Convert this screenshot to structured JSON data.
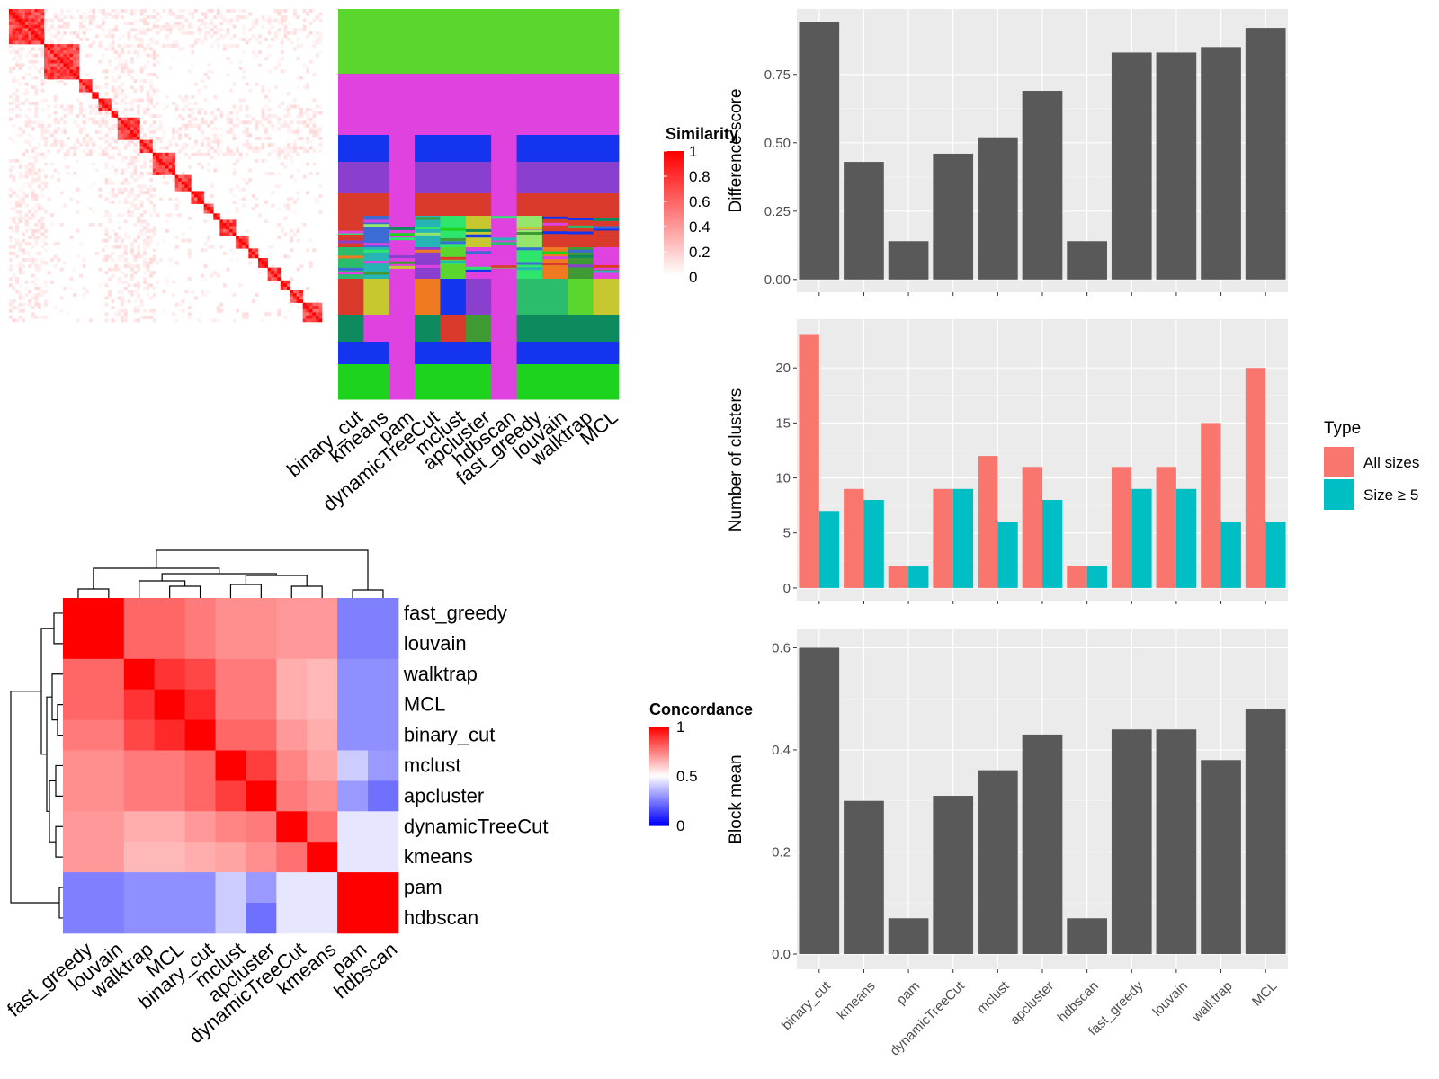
{
  "methods": [
    "binary_cut",
    "kmeans",
    "pam",
    "dynamicTreeCut",
    "mclust",
    "apcluster",
    "hdbscan",
    "fast_greedy",
    "louvain",
    "walktrap",
    "MCL"
  ],
  "similarity_legend": {
    "title": "Similarity",
    "ticks": [
      "1",
      "0.8",
      "0.6",
      "0.4",
      "0.2",
      "0"
    ]
  },
  "concordance_legend": {
    "title": "Concordance",
    "ticks": [
      "1",
      "0.5",
      "0"
    ]
  },
  "concordance_order": [
    "fast_greedy",
    "louvain",
    "walktrap",
    "MCL",
    "binary_cut",
    "mclust",
    "apcluster",
    "dynamicTreeCut",
    "kmeans",
    "pam",
    "hdbscan"
  ],
  "concordance_matrix": [
    [
      1.0,
      1.0,
      0.8,
      0.8,
      0.76,
      0.72,
      0.72,
      0.7,
      0.7,
      0.25,
      0.25
    ],
    [
      1.0,
      1.0,
      0.8,
      0.8,
      0.76,
      0.72,
      0.72,
      0.7,
      0.7,
      0.25,
      0.25
    ],
    [
      0.8,
      0.8,
      1.0,
      0.9,
      0.86,
      0.76,
      0.76,
      0.66,
      0.64,
      0.28,
      0.28
    ],
    [
      0.8,
      0.8,
      0.9,
      1.0,
      0.92,
      0.76,
      0.76,
      0.66,
      0.64,
      0.28,
      0.28
    ],
    [
      0.76,
      0.76,
      0.86,
      0.92,
      1.0,
      0.8,
      0.8,
      0.7,
      0.66,
      0.28,
      0.28
    ],
    [
      0.72,
      0.72,
      0.76,
      0.76,
      0.8,
      1.0,
      0.88,
      0.74,
      0.68,
      0.4,
      0.3
    ],
    [
      0.72,
      0.72,
      0.76,
      0.76,
      0.8,
      0.88,
      1.0,
      0.76,
      0.72,
      0.3,
      0.22
    ],
    [
      0.7,
      0.7,
      0.66,
      0.66,
      0.7,
      0.74,
      0.76,
      1.0,
      0.78,
      0.45,
      0.45
    ],
    [
      0.7,
      0.7,
      0.64,
      0.64,
      0.66,
      0.68,
      0.72,
      0.78,
      1.0,
      0.45,
      0.45
    ],
    [
      0.25,
      0.25,
      0.28,
      0.28,
      0.28,
      0.4,
      0.3,
      0.45,
      0.45,
      1.0,
      1.0
    ],
    [
      0.25,
      0.25,
      0.28,
      0.28,
      0.28,
      0.4,
      0.22,
      0.45,
      0.45,
      1.0,
      1.0
    ]
  ],
  "chart_data": [
    {
      "type": "bar",
      "ylabel": "Difference score",
      "categories": [
        "binary_cut",
        "kmeans",
        "pam",
        "dynamicTreeCut",
        "mclust",
        "apcluster",
        "hdbscan",
        "fast_greedy",
        "louvain",
        "walktrap",
        "MCL"
      ],
      "values": [
        0.94,
        0.43,
        0.14,
        0.46,
        0.52,
        0.69,
        0.14,
        0.83,
        0.83,
        0.85,
        0.92
      ],
      "yticks": [
        "0.00",
        "0.25",
        "0.50",
        "0.75"
      ],
      "ylim": [
        0,
        0.98
      ],
      "color": "#595959"
    },
    {
      "type": "bar",
      "ylabel": "Number of clusters",
      "categories": [
        "binary_cut",
        "kmeans",
        "pam",
        "dynamicTreeCut",
        "mclust",
        "apcluster",
        "hdbscan",
        "fast_greedy",
        "louvain",
        "walktrap",
        "MCL"
      ],
      "series": [
        {
          "name": "All sizes",
          "color": "#f8766d",
          "values": [
            23,
            9,
            2,
            9,
            12,
            11,
            2,
            11,
            11,
            15,
            20
          ]
        },
        {
          "name": "Size ≥ 5",
          "color": "#00bfc4",
          "values": [
            7,
            8,
            2,
            9,
            6,
            8,
            2,
            9,
            9,
            6,
            6
          ]
        }
      ],
      "yticks": [
        "0",
        "5",
        "10",
        "15",
        "20"
      ],
      "ylim": [
        0,
        24.2
      ],
      "legend_title": "Type"
    },
    {
      "type": "bar",
      "ylabel": "Block mean",
      "categories": [
        "binary_cut",
        "kmeans",
        "pam",
        "dynamicTreeCut",
        "mclust",
        "apcluster",
        "hdbscan",
        "fast_greedy",
        "louvain",
        "walktrap",
        "MCL"
      ],
      "values": [
        0.6,
        0.3,
        0.07,
        0.31,
        0.36,
        0.43,
        0.07,
        0.44,
        0.44,
        0.38,
        0.48
      ],
      "yticks": [
        "0.0",
        "0.2",
        "0.4",
        "0.6"
      ],
      "ylim": [
        0,
        0.63
      ],
      "color": "#595959"
    }
  ]
}
